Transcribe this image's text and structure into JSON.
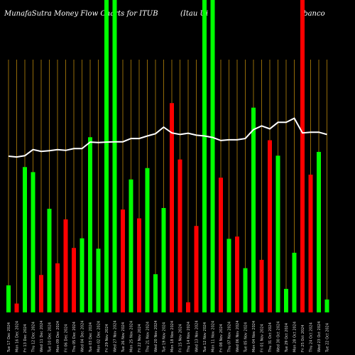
{
  "header": {
    "title_left": "MunafaSutra  Money Flow  Charts for ITUB",
    "title_mid": "(Itau   Ui",
    "title_right": "ibanco"
  },
  "colors": {
    "background": "#000000",
    "up": "#00ff00",
    "down": "#ff0000",
    "line": "#ffffff",
    "grid": "#b8860b"
  },
  "chart_data": {
    "type": "bar",
    "ylim": [
      0,
      100
    ],
    "bars": [
      {
        "label": "Tue 17 Dec 2024",
        "value": 10.7,
        "color": "up"
      },
      {
        "label": "Mon 16 Dec 2024",
        "value": 3.5,
        "color": "down"
      },
      {
        "label": "Fri 13 Dec 2024",
        "value": 57.5,
        "color": "up"
      },
      {
        "label": "Thu 12 Dec 2024",
        "value": 55.5,
        "color": "up"
      },
      {
        "label": "Wed 11 Dec 2024",
        "value": 14.8,
        "color": "down"
      },
      {
        "label": "Tue 10 Dec 2024",
        "value": 41.0,
        "color": "up"
      },
      {
        "label": "Mon 09 Dec 2024",
        "value": 19.4,
        "color": "down"
      },
      {
        "label": "Fri 06 Dec 2024",
        "value": 36.8,
        "color": "down"
      },
      {
        "label": "Thu 05 Dec 2024",
        "value": 25.5,
        "color": "down"
      },
      {
        "label": "Wed 04 Dec 2024",
        "value": 29.3,
        "color": "up"
      },
      {
        "label": "Tue 03 Dec 2024",
        "value": 69.3,
        "color": "up"
      },
      {
        "label": "Mon 02 Dec 2024",
        "value": 25.2,
        "color": "up"
      },
      {
        "label": "Fri 29 Nov 2024",
        "value": 100,
        "color": "up"
      },
      {
        "label": "Wed 27 Nov 2024",
        "value": 100,
        "color": "up"
      },
      {
        "label": "Tue 26 Nov 2024",
        "value": 40.7,
        "color": "down"
      },
      {
        "label": "Mon 25 Nov 2024",
        "value": 52.6,
        "color": "up"
      },
      {
        "label": "Fri 22 Nov 2024",
        "value": 37.2,
        "color": "down"
      },
      {
        "label": "Thu 21 Nov 2024",
        "value": 57.1,
        "color": "up"
      },
      {
        "label": "Wed 20 Nov 2024",
        "value": 15.1,
        "color": "up"
      },
      {
        "label": "Tue 19 Nov 2024",
        "value": 41.3,
        "color": "up"
      },
      {
        "label": "Mon 18 Nov 2024",
        "value": 82.8,
        "color": "down"
      },
      {
        "label": "Fri 15 Nov 2024",
        "value": 60.5,
        "color": "down"
      },
      {
        "label": "Thu 14 Nov 2024",
        "value": 4.0,
        "color": "down"
      },
      {
        "label": "Wed 13 Nov 2024",
        "value": 34.2,
        "color": "down"
      },
      {
        "label": "Tue 12 Nov 2024",
        "value": 100,
        "color": "up"
      },
      {
        "label": "Mon 11 Nov 2024",
        "value": 100,
        "color": "up"
      },
      {
        "label": "Fri 08 Nov 2024",
        "value": 53.3,
        "color": "down"
      },
      {
        "label": "Thu 07 Nov 2024",
        "value": 29.1,
        "color": "up"
      },
      {
        "label": "Wed 06 Nov 2024",
        "value": 30.0,
        "color": "down"
      },
      {
        "label": "Tue 05 Nov 2024",
        "value": 17.5,
        "color": "up"
      },
      {
        "label": "Mon 04 Nov 2024",
        "value": 81.0,
        "color": "up"
      },
      {
        "label": "Fri 01 Nov 2024",
        "value": 20.8,
        "color": "down"
      },
      {
        "label": "Thu 31 Oct 2024",
        "value": 68.1,
        "color": "down"
      },
      {
        "label": "Wed 30 Oct 2024",
        "value": 62.0,
        "color": "up"
      },
      {
        "label": "Tue 29 Oct 2024",
        "value": 9.3,
        "color": "up"
      },
      {
        "label": "Mon 28 Oct 2024",
        "value": 23.6,
        "color": "up"
      },
      {
        "label": "Fri 25 Oct 2024",
        "value": 100,
        "color": "down"
      },
      {
        "label": "Thu 24 Oct 2024",
        "value": 54.5,
        "color": "down"
      },
      {
        "label": "Wed 23 Oct 2024",
        "value": 63.5,
        "color": "up"
      },
      {
        "label": "Tue 22 Oct 2024",
        "value": 5.1,
        "color": "up"
      }
    ],
    "line": [
      61.8,
      61.5,
      62.0,
      64.4,
      63.7,
      64.0,
      64.4,
      64.1,
      64.8,
      64.8,
      67.4,
      67.2,
      67.4,
      67.5,
      67.5,
      68.8,
      68.8,
      69.8,
      70.7,
      73.3,
      71.0,
      70.4,
      70.9,
      70.1,
      69.8,
      69.2,
      68.0,
      68.3,
      68.3,
      68.8,
      72.3,
      73.8,
      72.6,
      75.2,
      75.2,
      76.8,
      71.0,
      71.3,
      71.3,
      70.4
    ]
  }
}
